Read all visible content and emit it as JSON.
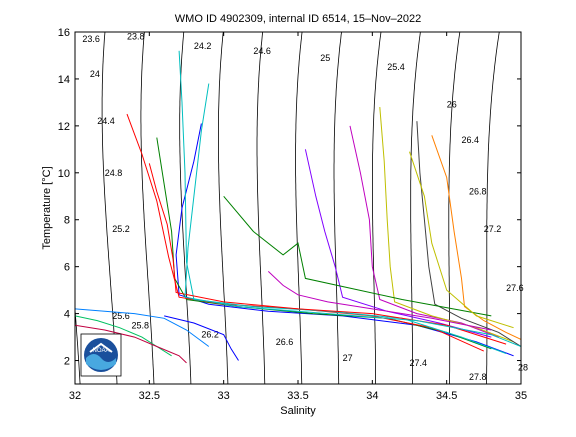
{
  "chart_data": {
    "type": "line",
    "title": "WMO ID 4902309, internal ID 6514, 15–Nov–2022",
    "xlabel": "Salinity",
    "ylabel": "Temperature [°C]",
    "xlim": [
      32,
      35
    ],
    "ylim": [
      1,
      16
    ],
    "xticks": [
      32,
      32.5,
      33,
      33.5,
      34,
      34.5,
      35
    ],
    "xtick_labels": [
      "32",
      "32.5",
      "33",
      "33.5",
      "34",
      "34.5",
      "35"
    ],
    "yticks": [
      2,
      4,
      6,
      8,
      10,
      12,
      14,
      16
    ],
    "ytick_labels": [
      "2",
      "4",
      "6",
      "8",
      "10",
      "12",
      "14",
      "16"
    ],
    "grid": false,
    "logo": "NOAA",
    "density_contours": [
      {
        "label": "23.6",
        "lx": 32.05,
        "ly": 15.7
      },
      {
        "label": "23.8",
        "lx": 32.35,
        "ly": 15.8
      },
      {
        "label": "24",
        "lx": 32.1,
        "ly": 14.2
      },
      {
        "label": "24.2",
        "lx": 32.8,
        "ly": 15.4
      },
      {
        "label": "24.4",
        "lx": 32.15,
        "ly": 12.2
      },
      {
        "label": "24.6",
        "lx": 33.2,
        "ly": 15.2
      },
      {
        "label": "24.8",
        "lx": 32.2,
        "ly": 10.0
      },
      {
        "label": "25",
        "lx": 33.65,
        "ly": 14.9
      },
      {
        "label": "25.2",
        "lx": 32.25,
        "ly": 7.6
      },
      {
        "label": "25.4",
        "lx": 34.1,
        "ly": 14.5
      },
      {
        "label": "25.6",
        "lx": 32.25,
        "ly": 3.9
      },
      {
        "label": "25.8",
        "lx": 32.38,
        "ly": 3.5
      },
      {
        "label": "26",
        "lx": 34.5,
        "ly": 12.9
      },
      {
        "label": "26.2",
        "lx": 32.85,
        "ly": 3.1
      },
      {
        "label": "26.4",
        "lx": 34.6,
        "ly": 11.4
      },
      {
        "label": "26.6",
        "lx": 33.35,
        "ly": 2.8
      },
      {
        "label": "26.8",
        "lx": 34.65,
        "ly": 9.2
      },
      {
        "label": "27",
        "lx": 33.8,
        "ly": 2.1
      },
      {
        "label": "27.2",
        "lx": 34.75,
        "ly": 7.6
      },
      {
        "label": "27.4",
        "lx": 34.25,
        "ly": 1.9
      },
      {
        "label": "27.6",
        "lx": 34.9,
        "ly": 5.1
      },
      {
        "label": "27.8",
        "lx": 34.65,
        "ly": 1.3
      },
      {
        "label": "28",
        "lx": 34.98,
        "ly": 1.7
      }
    ],
    "series": [
      {
        "x": [
          32.85,
          32.8,
          32.72,
          32.68,
          32.7,
          32.9,
          33.3,
          33.8,
          34.3,
          34.7,
          34.95
        ],
        "y": [
          12.1,
          10.5,
          8.5,
          6.5,
          4.8,
          4.4,
          4.1,
          3.9,
          3.5,
          2.8,
          2.2
        ]
      },
      {
        "x": [
          32.55,
          32.6,
          32.65,
          32.67,
          32.75,
          33.1,
          33.6,
          34.1,
          34.5,
          34.8
        ],
        "y": [
          11.5,
          9.5,
          7.5,
          5.5,
          4.6,
          4.3,
          4.0,
          3.8,
          3.2,
          2.5
        ]
      },
      {
        "x": [
          32.35,
          32.45,
          32.55,
          32.63,
          32.7,
          33.0,
          33.5,
          34.0,
          34.4,
          34.75
        ],
        "y": [
          12.5,
          10.8,
          8.8,
          6.4,
          4.7,
          4.4,
          4.2,
          3.9,
          3.4,
          2.4
        ]
      },
      {
        "x": [
          32.7,
          32.72,
          32.74,
          32.75,
          32.8,
          33.2,
          33.7,
          34.2,
          34.6,
          34.9
        ],
        "y": [
          15.2,
          13.0,
          10.0,
          6.2,
          4.6,
          4.3,
          4.1,
          3.8,
          3.0,
          2.3
        ]
      },
      {
        "x": [
          33.85,
          33.92,
          33.98,
          34.0,
          34.05,
          34.3,
          34.6,
          34.85
        ],
        "y": [
          12.0,
          10.0,
          8.0,
          6.0,
          4.6,
          4.0,
          3.6,
          3.0
        ]
      },
      {
        "x": [
          34.05,
          34.08,
          34.1,
          34.12,
          34.15,
          34.4,
          34.7,
          34.95
        ],
        "y": [
          12.8,
          10.5,
          8.0,
          6.0,
          4.5,
          3.9,
          3.4,
          2.8
        ]
      },
      {
        "x": [
          34.3,
          34.32,
          34.35,
          34.38,
          34.42,
          34.6,
          34.85,
          35.0
        ],
        "y": [
          12.2,
          10.0,
          8.0,
          6.0,
          4.4,
          3.8,
          3.2,
          2.6
        ]
      },
      {
        "x": [
          34.4,
          34.5,
          34.55,
          34.6,
          34.62,
          34.75,
          34.9,
          35.0
        ],
        "y": [
          11.6,
          9.8,
          7.5,
          5.5,
          4.3,
          3.7,
          3.2,
          2.9
        ]
      },
      {
        "x": [
          33.55,
          33.62,
          33.68,
          33.75,
          33.8,
          34.1,
          34.45,
          34.8
        ],
        "y": [
          11.0,
          9.0,
          7.5,
          6.0,
          4.7,
          4.1,
          3.6,
          3.0
        ]
      },
      {
        "x": [
          32.0,
          32.2,
          32.4,
          32.6,
          32.75,
          32.9
        ],
        "y": [
          4.2,
          4.1,
          4.0,
          3.8,
          3.3,
          2.6
        ]
      },
      {
        "x": [
          32.0,
          32.15,
          32.3,
          32.45,
          32.55,
          32.65
        ],
        "y": [
          3.9,
          3.7,
          3.4,
          3.0,
          2.6,
          2.2
        ]
      },
      {
        "x": [
          32.0,
          32.2,
          32.4,
          32.55,
          32.7,
          32.75
        ],
        "y": [
          3.5,
          3.3,
          3.0,
          2.6,
          2.2,
          1.9
        ]
      },
      {
        "x": [
          32.6,
          32.8,
          33.0,
          33.05,
          33.1
        ],
        "y": [
          3.9,
          3.6,
          3.1,
          2.5,
          2.0
        ]
      },
      {
        "x": [
          33.0,
          33.2,
          33.4,
          33.5,
          33.55,
          34.2,
          34.8
        ],
        "y": [
          9.0,
          7.5,
          6.5,
          7.0,
          5.5,
          4.6,
          3.9
        ]
      },
      {
        "x": [
          32.5,
          32.55,
          32.62,
          32.66,
          32.68,
          33.0,
          33.5,
          34.0,
          34.5,
          34.9
        ],
        "y": [
          10.4,
          9.2,
          7.8,
          6.3,
          4.9,
          4.5,
          4.2,
          4.0,
          3.5,
          2.7
        ]
      },
      {
        "x": [
          32.9,
          32.85,
          32.8,
          32.76,
          32.74,
          33.1,
          33.7,
          34.3,
          34.8,
          35.0
        ],
        "y": [
          13.8,
          11.8,
          9.0,
          6.8,
          4.7,
          4.3,
          4.0,
          3.7,
          3.1,
          2.6
        ]
      },
      {
        "x": [
          33.3,
          33.4,
          33.5,
          33.7,
          34.0,
          34.4,
          34.8
        ],
        "y": [
          5.8,
          5.2,
          4.8,
          4.5,
          4.2,
          3.8,
          3.3
        ]
      },
      {
        "x": [
          34.25,
          34.35,
          34.4,
          34.5,
          34.7,
          34.95
        ],
        "y": [
          10.9,
          9.0,
          7.0,
          5.0,
          3.9,
          3.4
        ]
      }
    ]
  }
}
